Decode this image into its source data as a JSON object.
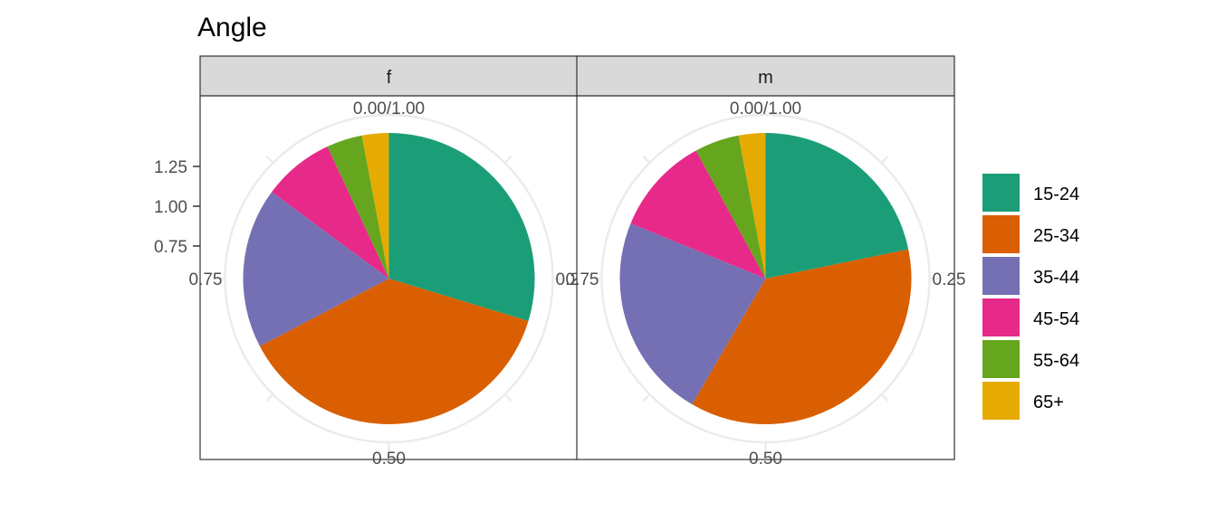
{
  "chart_data": {
    "type": "pie",
    "title": "Angle",
    "facets": [
      "f",
      "m"
    ],
    "categories": [
      "15-24",
      "25-34",
      "35-44",
      "45-54",
      "55-64",
      "65+"
    ],
    "colors": [
      "#1B9E77",
      "#D95F02",
      "#7570B3",
      "#E7298A",
      "#66A61E",
      "#E6AB02"
    ],
    "series": [
      {
        "facet": "f",
        "values": [
          0.3,
          0.38,
          0.18,
          0.08,
          0.04,
          0.03
        ]
      },
      {
        "facet": "m",
        "values": [
          0.22,
          0.37,
          0.23,
          0.11,
          0.05,
          0.03
        ]
      }
    ],
    "theta_ticks": [
      "0.00/1.00",
      "0.25",
      "0.50",
      "0.75"
    ],
    "r_ticks": [
      "0.75",
      "1.00",
      "1.25"
    ],
    "legend_position": "right",
    "grid": true
  }
}
